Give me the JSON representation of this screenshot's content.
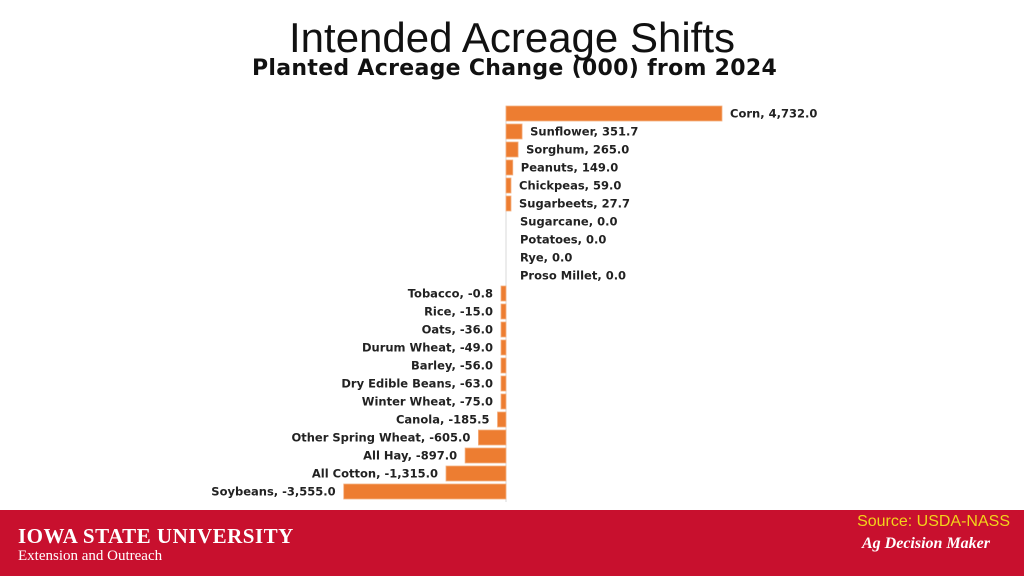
{
  "slide_title": "Intended Acreage Shifts",
  "chart_data": {
    "type": "bar",
    "orientation": "horizontal",
    "title": "Planted Acreage Change (000) from 2024",
    "categories": [
      "Corn",
      "Sunflower",
      "Sorghum",
      "Peanuts",
      "Chickpeas",
      "Sugarbeets",
      "Sugarcane",
      "Potatoes",
      "Rye",
      "Proso Millet",
      "Tobacco",
      "Rice",
      "Oats",
      "Durum Wheat",
      "Barley",
      "Dry Edible Beans",
      "Winter Wheat",
      "Canola",
      "Other Spring Wheat",
      "All Hay",
      "All Cotton",
      "Soybeans"
    ],
    "values": [
      4732.0,
      351.7,
      265.0,
      149.0,
      59.0,
      27.7,
      0.0,
      0.0,
      0.0,
      0.0,
      -0.8,
      -15.0,
      -36.0,
      -49.0,
      -56.0,
      -63.0,
      -75.0,
      -185.5,
      -605.0,
      -897.0,
      -1315.0,
      -3555.0
    ],
    "labels": [
      "Corn, 4,732.0",
      "Sunflower, 351.7",
      "Sorghum, 265.0",
      "Peanuts, 149.0",
      "Chickpeas, 59.0",
      "Sugarbeets, 27.7",
      "Sugarcane, 0.0",
      "Potatoes, 0.0",
      "Rye, 0.0",
      "Proso Millet, 0.0",
      "Tobacco, -0.8",
      "Rice, -15.0",
      "Oats, -36.0",
      "Durum Wheat, -49.0",
      "Barley, -56.0",
      "Dry Edible Beans, -63.0",
      "Winter Wheat, -75.0",
      "Canola, -185.5",
      "Other Spring Wheat, -605.0",
      "All Hay, -897.0",
      "All Cotton, -1,315.0",
      "Soybeans, -3,555.0"
    ],
    "bar_color": "#ed7d31",
    "grid": false,
    "legend": "none"
  },
  "footer": {
    "university": "IOWA STATE UNIVERSITY",
    "subtitle": "Extension and Outreach",
    "source": "Source: USDA-NASS",
    "brand": "Ag Decision Maker",
    "background_color": "#c8102e"
  }
}
